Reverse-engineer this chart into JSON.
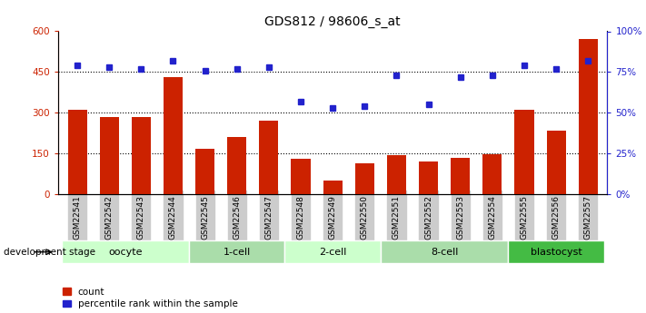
{
  "title": "GDS812 / 98606_s_at",
  "samples": [
    "GSM22541",
    "GSM22542",
    "GSM22543",
    "GSM22544",
    "GSM22545",
    "GSM22546",
    "GSM22547",
    "GSM22548",
    "GSM22549",
    "GSM22550",
    "GSM22551",
    "GSM22552",
    "GSM22553",
    "GSM22554",
    "GSM22555",
    "GSM22556",
    "GSM22557"
  ],
  "counts": [
    310,
    285,
    285,
    430,
    168,
    210,
    270,
    130,
    50,
    115,
    143,
    120,
    135,
    148,
    310,
    235,
    570
  ],
  "percentile": [
    79,
    78,
    77,
    82,
    76,
    77,
    78,
    57,
    53,
    54,
    73,
    55,
    72,
    73,
    79,
    77,
    82
  ],
  "groups": [
    {
      "label": "oocyte",
      "start": 0,
      "end": 3,
      "color": "#ccffcc"
    },
    {
      "label": "1-cell",
      "start": 4,
      "end": 6,
      "color": "#aaddaa"
    },
    {
      "label": "2-cell",
      "start": 7,
      "end": 9,
      "color": "#ccffcc"
    },
    {
      "label": "8-cell",
      "start": 10,
      "end": 13,
      "color": "#aaddaa"
    },
    {
      "label": "blastocyst",
      "start": 14,
      "end": 16,
      "color": "#44bb44"
    }
  ],
  "bar_color": "#cc2200",
  "dot_color": "#2222cc",
  "ylim_left": [
    0,
    600
  ],
  "ylim_right": [
    0,
    100
  ],
  "yticks_left": [
    0,
    150,
    300,
    450,
    600
  ],
  "yticks_right": [
    0,
    25,
    50,
    75,
    100
  ],
  "ytick_labels_left": [
    "0",
    "150",
    "300",
    "450",
    "600"
  ],
  "ytick_labels_right": [
    "0%",
    "25%",
    "50%",
    "75%",
    "100%"
  ],
  "grid_values": [
    150,
    300,
    450
  ],
  "bg_color": "#ffffff",
  "label_count": "count",
  "label_pct": "percentile rank within the sample",
  "dev_stage_label": "development stage",
  "xtick_bg": "#cccccc"
}
